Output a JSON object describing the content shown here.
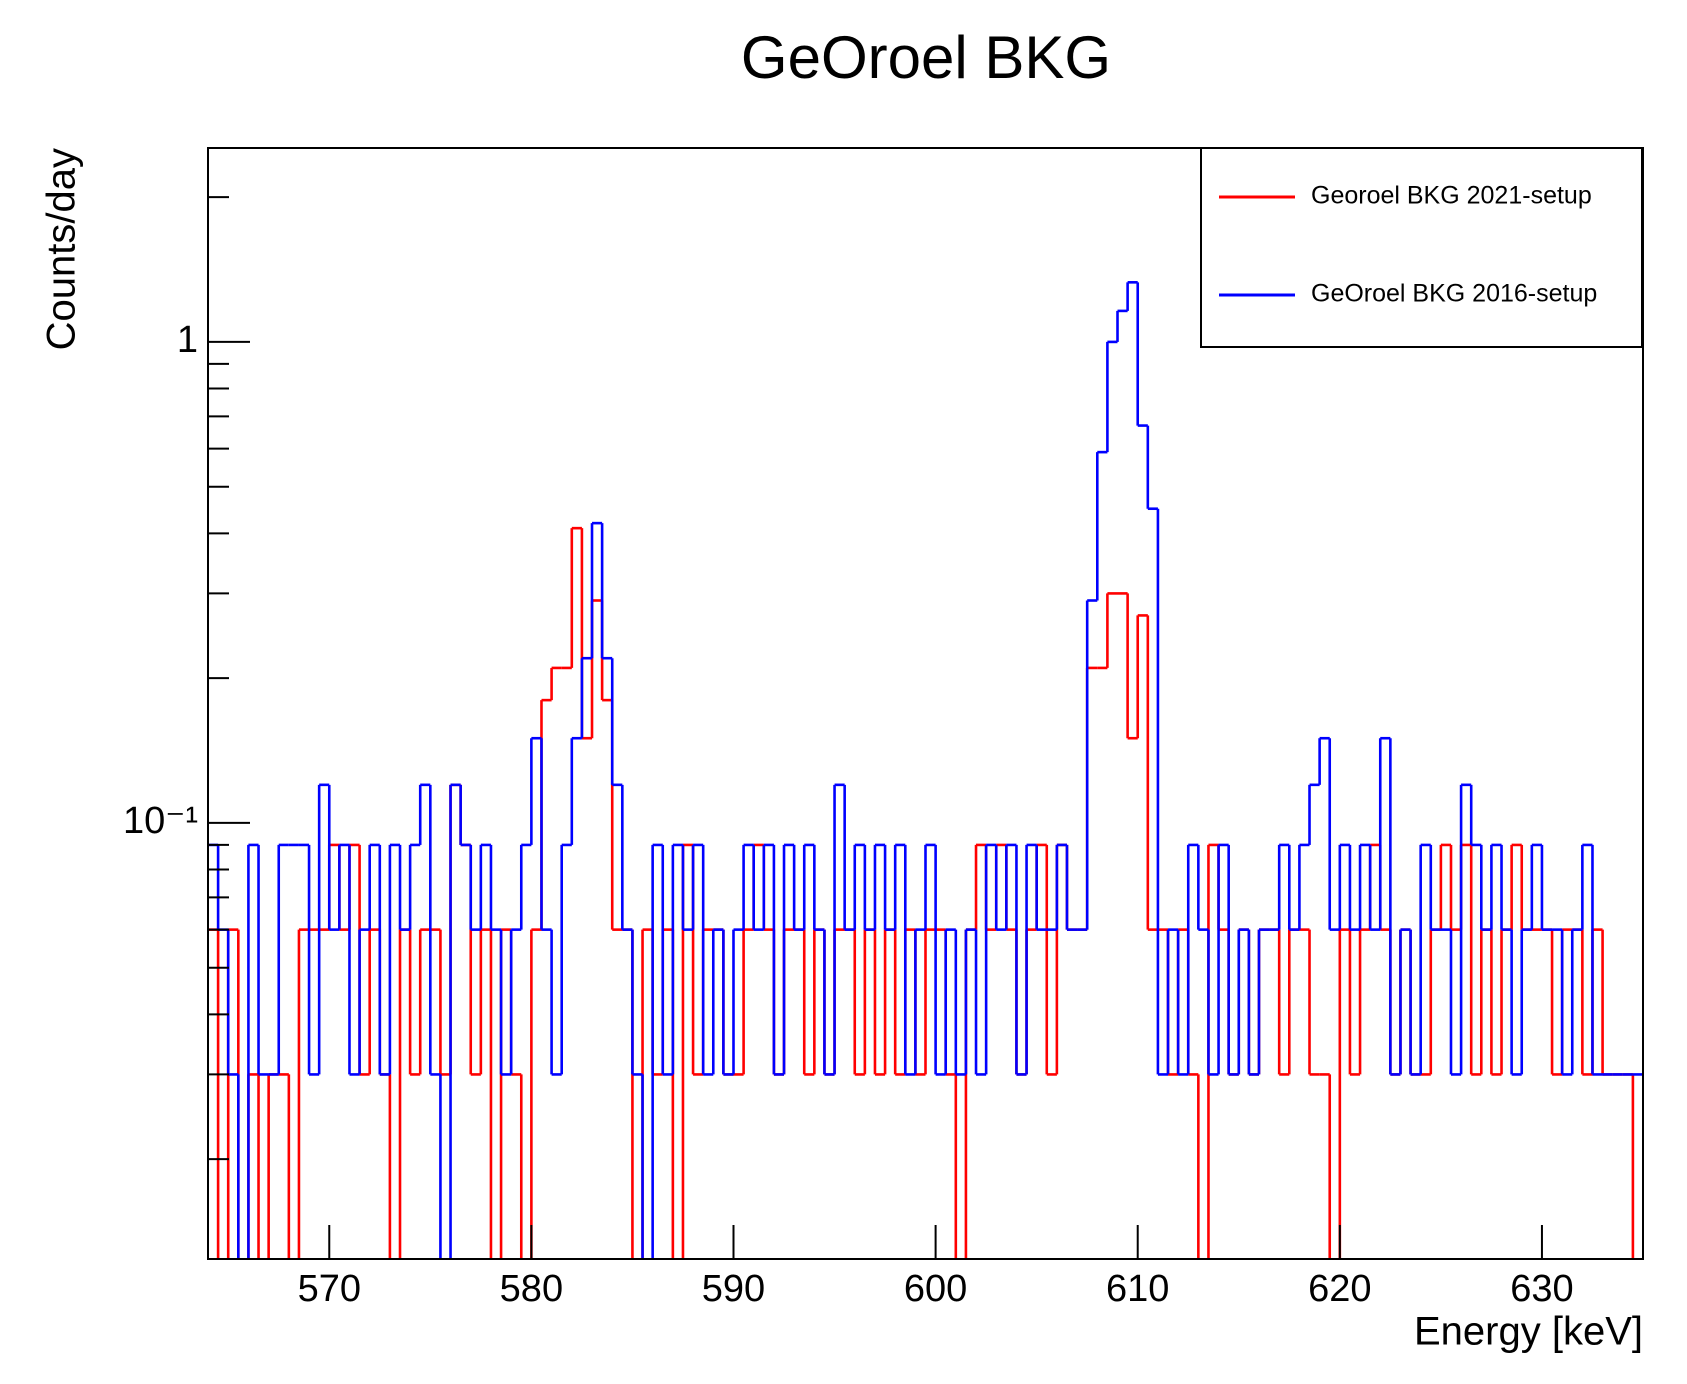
{
  "chart_data": {
    "type": "histogram",
    "title": "GeOroel BKG",
    "x_label": "Energy [keV]",
    "y_label": "Counts/day",
    "log_y": true,
    "grid": false,
    "legend": "top-right",
    "xlim": [
      564,
      635
    ],
    "ylim": [
      0.0124,
      2.53
    ],
    "xticks": [
      570,
      580,
      590,
      600,
      610,
      620,
      630
    ],
    "yticks": [
      {
        "value": 0.1,
        "label": "10⁻¹"
      },
      1
    ],
    "yminor_ticks": [
      0.02,
      0.03,
      0.04,
      0.05,
      0.06,
      0.07,
      0.08,
      0.09,
      0.2,
      0.3,
      0.4,
      0.5,
      0.6,
      0.7,
      0.8,
      0.9,
      2
    ],
    "bins": [
      564,
      564.5,
      565,
      565.5,
      566,
      566.5,
      567,
      567.5,
      568,
      568.5,
      569,
      569.5,
      570,
      570.5,
      571,
      571.5,
      572,
      572.5,
      573,
      573.5,
      574,
      574.5,
      575,
      575.5,
      576,
      576.5,
      577,
      577.5,
      578,
      578.5,
      579,
      579.5,
      580,
      580.5,
      581,
      581.5,
      582,
      582.5,
      583,
      583.5,
      584,
      584.5,
      585,
      585.5,
      586,
      586.5,
      587,
      587.5,
      588,
      588.5,
      589,
      589.5,
      590,
      590.5,
      591,
      591.5,
      592,
      592.5,
      593,
      593.5,
      594,
      594.5,
      595,
      595.5,
      596,
      596.5,
      597,
      597.5,
      598,
      598.5,
      599,
      599.5,
      600,
      600.5,
      601,
      601.5,
      602,
      602.5,
      603,
      603.5,
      604,
      604.5,
      605,
      605.5,
      606,
      606.5,
      607,
      607.5,
      608,
      608.5,
      609,
      609.5,
      610,
      610.5,
      611,
      611.5,
      612,
      612.5,
      613,
      613.5,
      614,
      614.5,
      615,
      615.5,
      616,
      616.5,
      617,
      617.5,
      618,
      618.5,
      619,
      619.5,
      620,
      620.5,
      621,
      621.5,
      622,
      622.5,
      623,
      623.5,
      624,
      624.5,
      625,
      625.5,
      626,
      626.5,
      627,
      627.5,
      628,
      628.5,
      629,
      629.5,
      630,
      630.5,
      631,
      631.5,
      632,
      632.5,
      633,
      633.5,
      634,
      634.5,
      635
    ],
    "series": [
      {
        "name": "Georoel BKG 2021-setup",
        "color": "#ff0000",
        "values": [
          0.06,
          0,
          0.06,
          0,
          0.03,
          0,
          0.03,
          0.03,
          0,
          0.06,
          0.06,
          0.06,
          0.09,
          0.06,
          0.09,
          0.03,
          0.06,
          0.03,
          0,
          0.06,
          0.03,
          0.06,
          0.06,
          0.03,
          0.12,
          0.09,
          0.03,
          0.06,
          0,
          0.06,
          0.03,
          0,
          0.06,
          0.18,
          0.21,
          0.21,
          0.41,
          0.15,
          0.29,
          0.18,
          0.06,
          0.06,
          0,
          0.06,
          0.03,
          0.06,
          0,
          0.09,
          0.03,
          0.06,
          0.06,
          0.03,
          0.03,
          0.06,
          0.09,
          0.06,
          0.03,
          0.06,
          0.06,
          0.03,
          0.06,
          0.03,
          0.06,
          0.06,
          0.03,
          0.06,
          0.03,
          0.06,
          0.03,
          0.06,
          0.03,
          0.06,
          0.06,
          0.03,
          0,
          0.06,
          0.09,
          0.06,
          0.09,
          0.06,
          0.03,
          0.06,
          0.09,
          0.03,
          0.09,
          0.06,
          0.06,
          0.21,
          0.21,
          0.3,
          0.3,
          0.15,
          0.27,
          0.06,
          0.06,
          0.03,
          0.06,
          0.03,
          0,
          0.09,
          0.06,
          0.03,
          0.06,
          0.03,
          0.06,
          0.06,
          0.03,
          0.06,
          0.06,
          0.03,
          0.03,
          0,
          0.06,
          0.03,
          0.06,
          0.09,
          0.06,
          0.03,
          0.06,
          0.03,
          0.03,
          0.06,
          0.09,
          0.06,
          0.09,
          0.03,
          0.06,
          0.03,
          0.06,
          0.09,
          0.06,
          0.06,
          0.06,
          0.03,
          0.06,
          0.06,
          0.03,
          0.06,
          0.03,
          0.03,
          0.03,
          0
        ]
      },
      {
        "name": "GeOroel BKG 2016-setup",
        "color": "#0000ff",
        "values": [
          0.09,
          0.06,
          0.03,
          0,
          0.09,
          0.03,
          0.03,
          0.09,
          0.09,
          0.09,
          0.03,
          0.12,
          0.06,
          0.09,
          0.03,
          0.06,
          0.09,
          0.03,
          0.09,
          0.06,
          0.09,
          0.12,
          0.03,
          0,
          0.12,
          0.09,
          0.06,
          0.09,
          0.06,
          0.03,
          0.06,
          0.09,
          0.15,
          0.06,
          0.03,
          0.09,
          0.15,
          0.22,
          0.42,
          0.22,
          0.12,
          0.06,
          0.03,
          0,
          0.09,
          0.03,
          0.09,
          0.06,
          0.09,
          0.03,
          0.06,
          0.03,
          0.06,
          0.09,
          0.06,
          0.09,
          0.03,
          0.09,
          0.06,
          0.09,
          0.06,
          0.03,
          0.12,
          0.06,
          0.09,
          0.06,
          0.09,
          0.06,
          0.09,
          0.03,
          0.06,
          0.09,
          0.03,
          0.06,
          0.03,
          0.06,
          0.03,
          0.09,
          0.06,
          0.09,
          0.03,
          0.09,
          0.06,
          0.06,
          0.09,
          0.06,
          0.06,
          0.29,
          0.59,
          1.0,
          1.16,
          1.33,
          0.67,
          0.45,
          0.03,
          0.06,
          0.03,
          0.09,
          0.06,
          0.03,
          0.09,
          0.03,
          0.06,
          0.03,
          0.06,
          0.06,
          0.09,
          0.06,
          0.09,
          0.12,
          0.15,
          0.06,
          0.09,
          0.06,
          0.09,
          0.06,
          0.15,
          0.03,
          0.06,
          0.03,
          0.09,
          0.06,
          0.06,
          0.03,
          0.12,
          0.09,
          0.06,
          0.09,
          0.06,
          0.03,
          0.06,
          0.09,
          0.06,
          0.06,
          0.03,
          0.06,
          0.09,
          0.03,
          0.03,
          0.03,
          0.03,
          0.03
        ]
      }
    ]
  }
}
